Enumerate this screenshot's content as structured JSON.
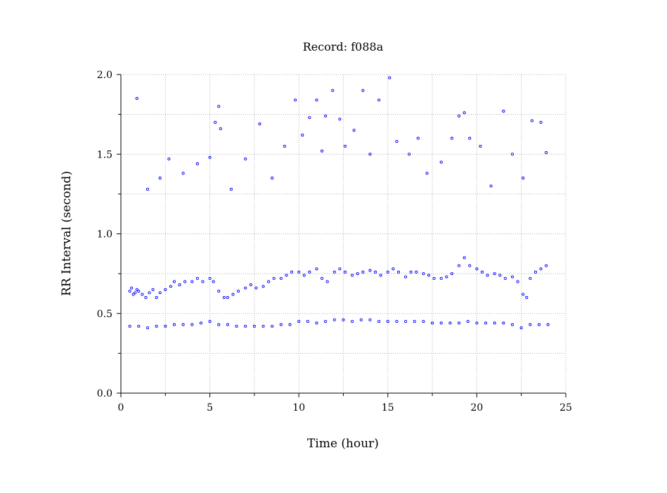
{
  "chart_data": {
    "type": "scatter",
    "title": "Record:  f088a",
    "xlabel": "Time (hour)",
    "ylabel": "RR Interval (second)",
    "xlim": [
      0,
      25
    ],
    "ylim": [
      0.0,
      2.0
    ],
    "x_ticks": [
      0,
      5,
      10,
      15,
      20,
      25
    ],
    "x_tick_labels": [
      "0",
      "5",
      "10",
      "15",
      "20",
      "25"
    ],
    "y_ticks": [
      0.0,
      0.5,
      1.0,
      1.5,
      2.0
    ],
    "y_tick_labels": [
      "0.0",
      "0.5",
      "1.0",
      "1.5",
      "2.0"
    ],
    "grid": true,
    "grid_style": "dotted",
    "marker": "open-circle",
    "marker_color": "#0000ff",
    "series": [
      {
        "x": [
          0.5,
          0.6,
          0.7,
          0.8,
          0.9,
          1.0,
          1.2,
          1.4,
          1.6,
          1.8,
          2.0,
          2.2,
          2.5,
          2.8,
          3.0,
          3.3,
          3.6,
          4.0,
          4.3,
          4.6,
          5.0,
          5.2,
          5.5,
          5.8,
          6.0,
          6.3,
          6.6,
          7.0,
          7.3,
          7.6,
          8.0,
          8.3,
          8.6,
          9.0,
          9.3,
          9.6,
          10.0,
          10.3,
          10.6,
          11.0,
          11.3,
          11.6,
          12.0,
          12.3,
          12.6,
          13.0,
          13.3,
          13.6,
          14.0,
          14.3,
          14.6,
          15.0,
          15.3,
          15.6,
          16.0,
          16.3,
          16.6,
          17.0,
          17.3,
          17.6,
          18.0,
          18.3,
          18.6,
          19.0,
          19.3,
          19.6,
          20.0,
          20.3,
          20.6,
          21.0,
          21.3,
          21.6,
          22.0,
          22.3,
          22.6,
          22.8,
          23.0,
          23.3,
          23.6,
          23.9
        ],
        "y": [
          0.64,
          0.66,
          0.62,
          0.63,
          0.65,
          0.64,
          0.62,
          0.6,
          0.63,
          0.65,
          0.6,
          0.63,
          0.65,
          0.67,
          0.7,
          0.68,
          0.7,
          0.7,
          0.72,
          0.7,
          0.72,
          0.7,
          0.64,
          0.6,
          0.6,
          0.62,
          0.64,
          0.66,
          0.68,
          0.66,
          0.67,
          0.7,
          0.72,
          0.72,
          0.74,
          0.76,
          0.76,
          0.74,
          0.76,
          0.78,
          0.72,
          0.7,
          0.76,
          0.78,
          0.76,
          0.74,
          0.75,
          0.76,
          0.77,
          0.76,
          0.74,
          0.76,
          0.78,
          0.76,
          0.73,
          0.76,
          0.76,
          0.75,
          0.74,
          0.72,
          0.72,
          0.73,
          0.75,
          0.8,
          0.85,
          0.8,
          0.78,
          0.76,
          0.74,
          0.75,
          0.74,
          0.72,
          0.73,
          0.7,
          0.62,
          0.6,
          0.72,
          0.76,
          0.78,
          0.8
        ]
      },
      {
        "x": [
          0.5,
          1.0,
          1.5,
          2.0,
          2.5,
          3.0,
          3.5,
          4.0,
          4.5,
          5.0,
          5.5,
          6.0,
          6.5,
          7.0,
          7.5,
          8.0,
          8.5,
          9.0,
          9.5,
          10.0,
          10.5,
          11.0,
          11.5,
          12.0,
          12.5,
          13.0,
          13.5,
          14.0,
          14.5,
          15.0,
          15.5,
          16.0,
          16.5,
          17.0,
          17.5,
          18.0,
          18.5,
          19.0,
          19.5,
          20.0,
          20.5,
          21.0,
          21.5,
          22.0,
          22.5,
          23.0,
          23.5,
          24.0
        ],
        "y": [
          0.42,
          0.42,
          0.41,
          0.42,
          0.42,
          0.43,
          0.43,
          0.43,
          0.44,
          0.45,
          0.43,
          0.43,
          0.42,
          0.42,
          0.42,
          0.42,
          0.42,
          0.43,
          0.43,
          0.45,
          0.45,
          0.44,
          0.45,
          0.46,
          0.46,
          0.45,
          0.46,
          0.46,
          0.45,
          0.45,
          0.45,
          0.45,
          0.45,
          0.45,
          0.44,
          0.44,
          0.44,
          0.44,
          0.45,
          0.44,
          0.44,
          0.44,
          0.44,
          0.43,
          0.41,
          0.43,
          0.43,
          0.43
        ]
      },
      {
        "x": [
          0.9,
          1.5,
          2.2,
          2.7,
          3.5,
          4.3,
          5.0,
          5.3,
          5.5,
          5.6,
          6.2,
          7.0,
          7.8,
          8.5,
          9.2,
          9.8,
          10.2,
          10.6,
          11.0,
          11.3,
          11.5,
          11.9,
          12.3,
          12.6,
          13.1,
          13.6,
          14.0,
          14.5,
          15.1,
          15.5,
          16.2,
          16.7,
          17.2,
          18.0,
          18.6,
          19.0,
          19.3,
          19.6,
          20.2,
          20.8,
          21.5,
          22.0,
          22.6,
          23.1,
          23.6,
          23.9
        ],
        "y": [
          1.85,
          1.28,
          1.35,
          1.47,
          1.38,
          1.44,
          1.48,
          1.7,
          1.8,
          1.66,
          1.28,
          1.47,
          1.69,
          1.35,
          1.55,
          1.84,
          1.62,
          1.73,
          1.84,
          1.52,
          1.74,
          1.9,
          1.72,
          1.55,
          1.65,
          1.9,
          1.5,
          1.84,
          1.98,
          1.58,
          1.5,
          1.6,
          1.38,
          1.45,
          1.6,
          1.74,
          1.76,
          1.6,
          1.55,
          1.3,
          1.77,
          1.5,
          1.35,
          1.71,
          1.7,
          1.51
        ]
      }
    ]
  }
}
